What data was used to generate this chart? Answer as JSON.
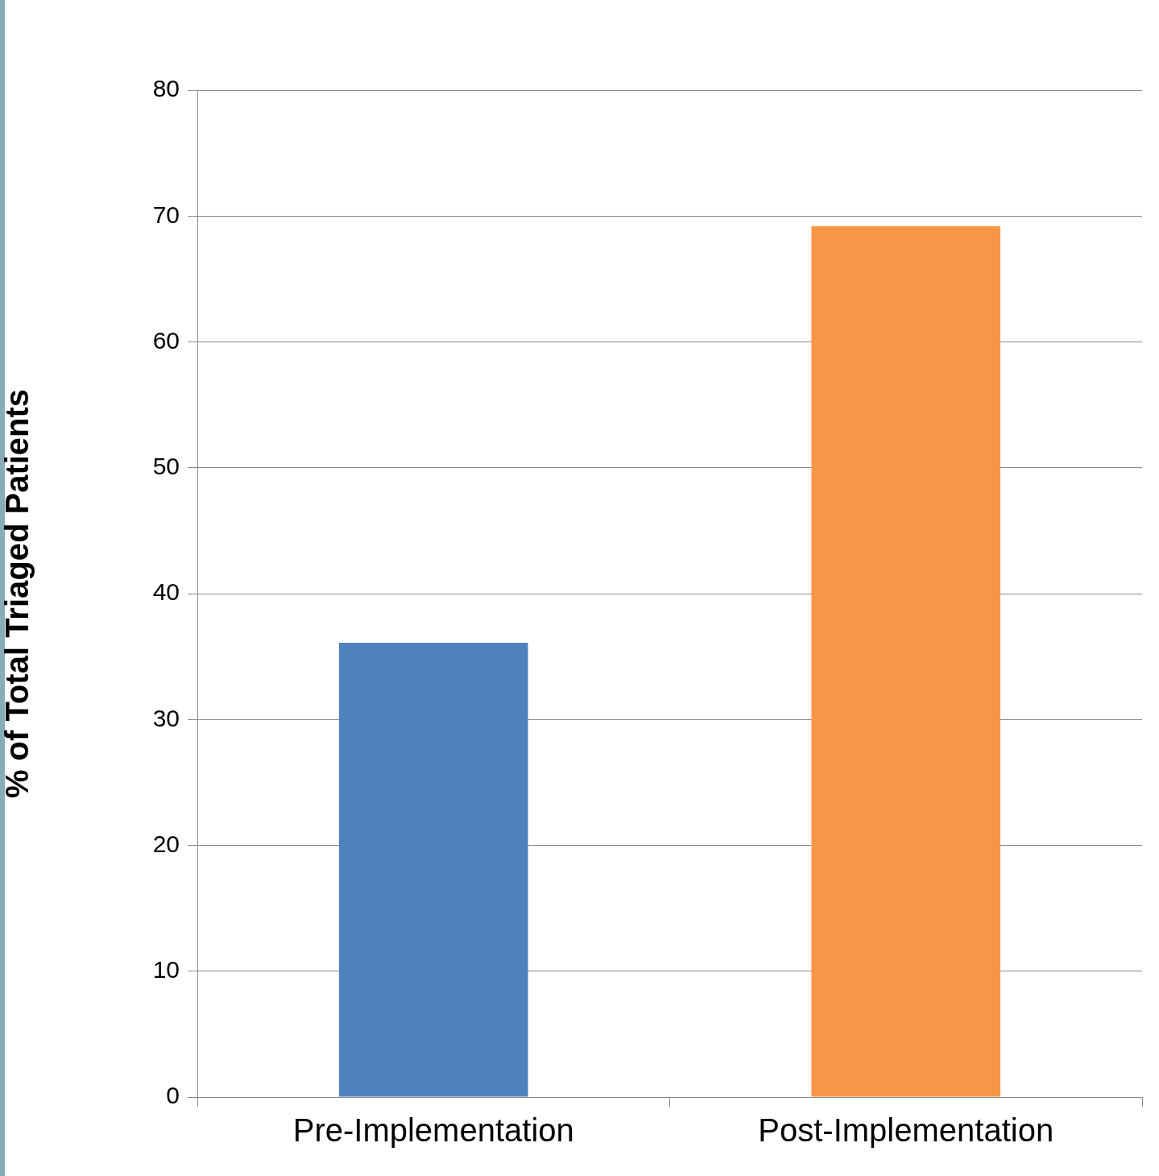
{
  "chart_data": {
    "type": "bar",
    "ylabel": "% of Total Triaged Patients",
    "categories": [
      "Pre-Implementation",
      "Post-Implementation"
    ],
    "values": [
      36.1,
      69.2
    ],
    "colors": [
      "#4f81bd",
      "#f79646"
    ],
    "ylim": [
      0,
      80
    ],
    "yticks": [
      0,
      10,
      20,
      30,
      40,
      50,
      60,
      70,
      80
    ],
    "grid": "y",
    "legend": false
  }
}
